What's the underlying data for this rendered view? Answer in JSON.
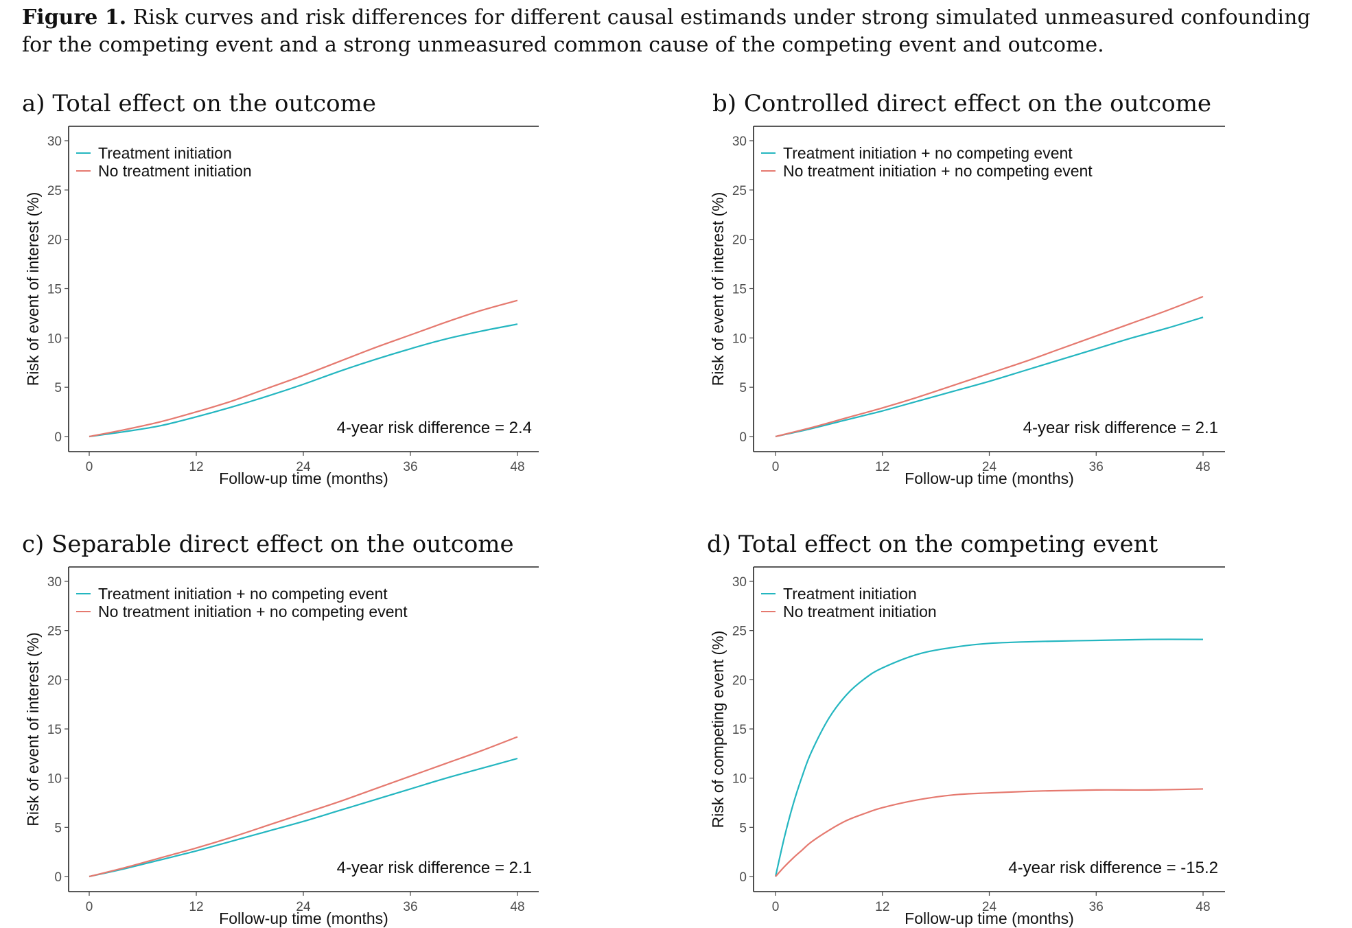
{
  "figure": {
    "label": "Figure 1.",
    "caption": "Risk curves and risk differences for different causal estimands under strong simulated unmeasured confounding for the competing event and a strong unmeasured common cause of the competing event and outcome."
  },
  "colors": {
    "treatment": "#24b6c0",
    "no_treatment": "#e5796f"
  },
  "chart_data": [
    {
      "type": "line",
      "title": "a) Total effect on the outcome",
      "xlabel": "Follow-up time (months)",
      "ylabel": "Risk of event of interest (%)",
      "xlim": [
        0,
        48
      ],
      "ylim": [
        0,
        30
      ],
      "xticks": [
        0,
        12,
        24,
        36,
        48
      ],
      "yticks": [
        0,
        5,
        10,
        15,
        20,
        25,
        30
      ],
      "legend_position": "top-left",
      "grid": false,
      "annotation": "4-year risk difference = 2.4",
      "x": [
        0,
        4,
        8,
        12,
        16,
        20,
        24,
        28,
        32,
        36,
        40,
        44,
        48
      ],
      "series": [
        {
          "name": "Treatment initiation",
          "color": "#24b6c0",
          "values": [
            0,
            0.5,
            1.1,
            2.0,
            3.0,
            4.1,
            5.3,
            6.6,
            7.8,
            8.9,
            9.9,
            10.7,
            11.4
          ]
        },
        {
          "name": "No treatment initiation",
          "color": "#e5796f",
          "values": [
            0,
            0.7,
            1.5,
            2.5,
            3.6,
            4.9,
            6.2,
            7.6,
            9.0,
            10.3,
            11.6,
            12.8,
            13.8
          ]
        }
      ]
    },
    {
      "type": "line",
      "title": "b) Controlled direct effect on the outcome",
      "xlabel": "Follow-up time (months)",
      "ylabel": "Risk of event of interest (%)",
      "xlim": [
        0,
        48
      ],
      "ylim": [
        0,
        30
      ],
      "xticks": [
        0,
        12,
        24,
        36,
        48
      ],
      "yticks": [
        0,
        5,
        10,
        15,
        20,
        25,
        30
      ],
      "legend_position": "top-left",
      "grid": false,
      "annotation": "4-year risk difference = 2.1",
      "x": [
        0,
        4,
        8,
        12,
        16,
        20,
        24,
        28,
        32,
        36,
        40,
        44,
        48
      ],
      "series": [
        {
          "name": "Treatment initiation + no competing event",
          "color": "#24b6c0",
          "values": [
            0,
            0.8,
            1.7,
            2.6,
            3.6,
            4.6,
            5.6,
            6.7,
            7.8,
            8.9,
            10.0,
            11.0,
            12.1
          ]
        },
        {
          "name": "No treatment initiation + no competing event",
          "color": "#e5796f",
          "values": [
            0,
            0.9,
            1.9,
            2.9,
            4.0,
            5.2,
            6.4,
            7.6,
            8.9,
            10.2,
            11.5,
            12.8,
            14.2
          ]
        }
      ]
    },
    {
      "type": "line",
      "title": "c) Separable direct effect on the outcome",
      "xlabel": "Follow-up time (months)",
      "ylabel": "Risk of event of interest (%)",
      "xlim": [
        0,
        48
      ],
      "ylim": [
        0,
        30
      ],
      "xticks": [
        0,
        12,
        24,
        36,
        48
      ],
      "yticks": [
        0,
        5,
        10,
        15,
        20,
        25,
        30
      ],
      "legend_position": "top-left",
      "grid": false,
      "annotation": "4-year risk difference = 2.1",
      "x": [
        0,
        4,
        8,
        12,
        16,
        20,
        24,
        28,
        32,
        36,
        40,
        44,
        48
      ],
      "series": [
        {
          "name": "Treatment initiation + no competing event",
          "color": "#24b6c0",
          "values": [
            0,
            0.8,
            1.7,
            2.6,
            3.6,
            4.6,
            5.6,
            6.7,
            7.8,
            8.9,
            10.0,
            11.0,
            12.0
          ]
        },
        {
          "name": "No treatment initiation + no competing event",
          "color": "#e5796f",
          "values": [
            0,
            0.9,
            1.9,
            2.9,
            4.0,
            5.2,
            6.4,
            7.6,
            8.9,
            10.2,
            11.5,
            12.8,
            14.2
          ]
        }
      ]
    },
    {
      "type": "line",
      "title": "d) Total effect on the competing event",
      "xlabel": "Follow-up time (months)",
      "ylabel": "Risk of competing event (%)",
      "xlim": [
        0,
        48
      ],
      "ylim": [
        0,
        30
      ],
      "xticks": [
        0,
        12,
        24,
        36,
        48
      ],
      "yticks": [
        0,
        5,
        10,
        15,
        20,
        25,
        30
      ],
      "legend_position": "top-left",
      "grid": false,
      "annotation": "4-year risk difference = -15.2",
      "x": [
        0,
        1,
        2,
        3,
        4,
        6,
        8,
        10,
        12,
        16,
        20,
        24,
        30,
        36,
        42,
        48
      ],
      "series": [
        {
          "name": "Treatment initiation",
          "color": "#24b6c0",
          "values": [
            0,
            4.0,
            7.4,
            10.2,
            12.6,
            16.1,
            18.5,
            20.1,
            21.2,
            22.6,
            23.3,
            23.7,
            23.9,
            24.0,
            24.1,
            24.1
          ]
        },
        {
          "name": "No treatment initiation",
          "color": "#e5796f",
          "values": [
            0,
            1.0,
            1.9,
            2.7,
            3.5,
            4.7,
            5.7,
            6.4,
            7.0,
            7.8,
            8.3,
            8.5,
            8.7,
            8.8,
            8.8,
            8.9
          ]
        }
      ]
    }
  ]
}
